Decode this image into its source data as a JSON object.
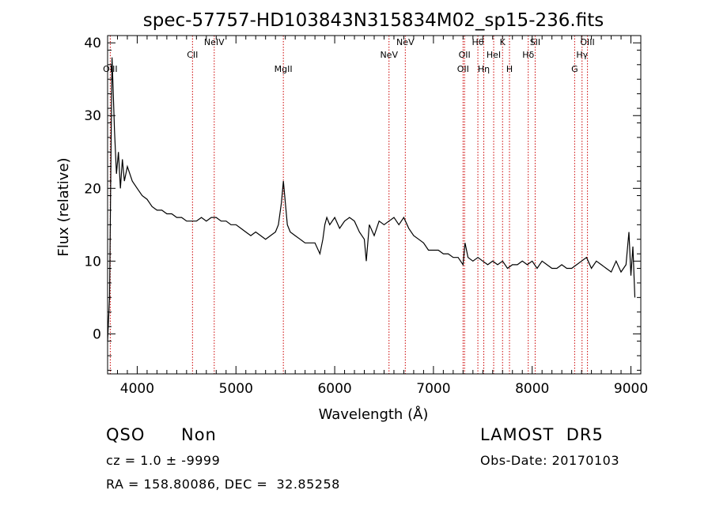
{
  "chart_data": {
    "type": "line",
    "title": "spec-57757-HD103843N315834M02_sp15-236.fits",
    "xlabel": "Wavelength (Å)",
    "ylabel": "Flux (relative)",
    "xlim": [
      3700,
      9100
    ],
    "ylim": [
      -5.5,
      41
    ],
    "xticks": [
      4000,
      5000,
      6000,
      7000,
      8000,
      9000
    ],
    "yticks": [
      0,
      10,
      20,
      30,
      40
    ],
    "grid": false,
    "line_color": "#000000",
    "marker_color": "#cc0000",
    "series": [
      {
        "x": [
          3700,
          3720,
          3735,
          3745,
          3755,
          3770,
          3790,
          3810,
          3830,
          3850,
          3870,
          3900,
          3950,
          4000,
          4050,
          4100,
          4150,
          4200,
          4250,
          4300,
          4350,
          4400,
          4450,
          4500,
          4550,
          4600,
          4650,
          4700,
          4750,
          4800,
          4850,
          4900,
          4950,
          5000,
          5050,
          5100,
          5150,
          5200,
          5250,
          5300,
          5350,
          5400,
          5430,
          5460,
          5480,
          5500,
          5520,
          5550,
          5600,
          5650,
          5700,
          5750,
          5800,
          5850,
          5880,
          5900,
          5920,
          5950,
          6000,
          6050,
          6100,
          6150,
          6200,
          6250,
          6300,
          6320,
          6350,
          6400,
          6450,
          6500,
          6550,
          6600,
          6650,
          6700,
          6750,
          6800,
          6850,
          6900,
          6950,
          7000,
          7050,
          7100,
          7150,
          7200,
          7250,
          7300,
          7320,
          7350,
          7400,
          7450,
          7500,
          7550,
          7600,
          7650,
          7700,
          7750,
          7800,
          7850,
          7900,
          7950,
          8000,
          8050,
          8100,
          8150,
          8200,
          8250,
          8300,
          8350,
          8400,
          8450,
          8500,
          8550,
          8600,
          8650,
          8700,
          8750,
          8800,
          8850,
          8900,
          8950,
          8980,
          9000,
          9020,
          9040
        ],
        "y": [
          -1,
          5,
          26,
          38,
          34,
          28,
          22,
          25,
          20,
          24,
          21,
          23,
          21,
          20,
          19,
          18.5,
          17.5,
          17,
          17,
          16.5,
          16.5,
          16,
          16,
          15.5,
          15.5,
          15.5,
          16,
          15.5,
          16,
          16,
          15.5,
          15.5,
          15,
          15,
          14.5,
          14,
          13.5,
          14,
          13.5,
          13,
          13.5,
          14,
          15,
          18,
          21,
          18,
          15,
          14,
          13.5,
          13,
          12.5,
          12.5,
          12.5,
          11,
          13,
          15,
          16,
          15,
          16,
          14.5,
          15.5,
          16,
          15.5,
          14,
          13,
          10,
          15,
          13.5,
          15.5,
          15,
          15.5,
          16,
          15,
          16,
          14.5,
          13.5,
          13,
          12.5,
          11.5,
          11.5,
          11.5,
          11,
          11,
          10.5,
          10.5,
          9.5,
          12.5,
          10.5,
          10,
          10.5,
          10,
          9.5,
          10,
          9.5,
          10,
          9,
          9.5,
          9.5,
          10,
          9.5,
          10,
          9,
          10,
          9.5,
          9,
          9,
          9.5,
          9,
          9,
          9.5,
          10,
          10.5,
          9,
          10,
          9.5,
          9,
          8.5,
          10,
          8.5,
          9.5,
          14,
          8,
          12,
          5
        ]
      }
    ],
    "lines": [
      {
        "label": "OIII",
        "x": 3727
      },
      {
        "label": "CII",
        "x": 4560
      },
      {
        "label": "NeIV",
        "x": 4780
      },
      {
        "label": "MgII",
        "x": 5480
      },
      {
        "label": "NeV",
        "x": 6550
      },
      {
        "label": "NeV",
        "x": 6715
      },
      {
        "label": "OII",
        "x": 7300
      },
      {
        "label": "OII",
        "x": 7315
      },
      {
        "label": "Hθ",
        "x": 7450
      },
      {
        "label": "Hη",
        "x": 7510
      },
      {
        "label": "HeI",
        "x": 7610
      },
      {
        "label": "K",
        "x": 7700
      },
      {
        "label": "H",
        "x": 7770
      },
      {
        "label": "Hδ",
        "x": 7960
      },
      {
        "label": "SII",
        "x": 8030
      },
      {
        "label": "G",
        "x": 8430
      },
      {
        "label": "Hγ",
        "x": 8505
      },
      {
        "label": "OIII",
        "x": 8560
      }
    ]
  },
  "info": {
    "obj_class": "QSO",
    "subclass": "Non",
    "survey": "LAMOST  DR5",
    "cz": "cz = 1.0 ± -9999",
    "obs_date": "Obs-Date: 20170103",
    "coords": "RA = 158.80086, DEC =  32.85258"
  }
}
